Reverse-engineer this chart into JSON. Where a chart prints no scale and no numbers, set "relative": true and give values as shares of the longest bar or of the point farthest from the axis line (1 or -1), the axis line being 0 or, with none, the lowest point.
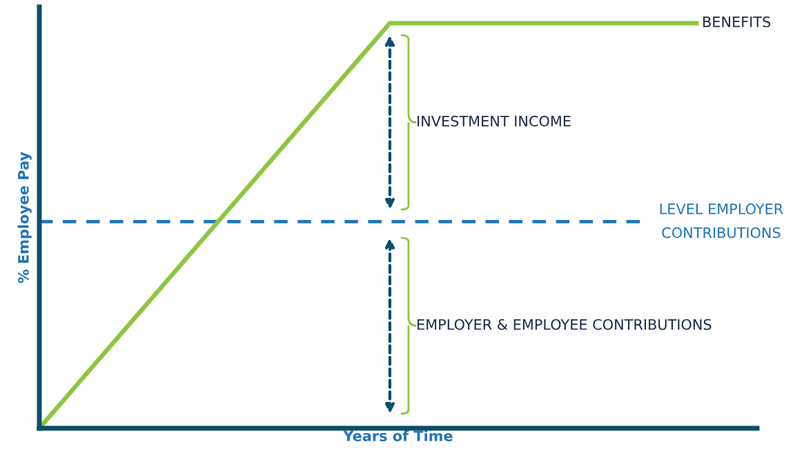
{
  "chart_data": {
    "type": "line",
    "relative": true,
    "xlabel": "Years of Time",
    "ylabel": "% Employee Pay",
    "categories": [
      null,
      null,
      null,
      null,
      null,
      null,
      null,
      null,
      null,
      null,
      null,
      null,
      null,
      null,
      null,
      null
    ],
    "series": [
      {
        "name": "BENEFITS",
        "color": "#8dc63f",
        "values": [
          0,
          0.125,
          0.25,
          0.375,
          0.5,
          0.625,
          0.75,
          0.875,
          1,
          1,
          1,
          1,
          1,
          1,
          1,
          1
        ]
      }
    ],
    "ref_lines": [
      {
        "axis": "y",
        "value": 0.51,
        "label": "LEVEL EMPLOYER\nCONTRIBUTIONS",
        "color": "#1f75bc",
        "line_style": "dashed"
      }
    ],
    "annotations": [
      "INVESTMENT INCOME",
      "EMPLOYER & EMPLOYEE CONTRIBUTIONS"
    ],
    "legend": false,
    "marker": "none",
    "line_style": "solid"
  }
}
